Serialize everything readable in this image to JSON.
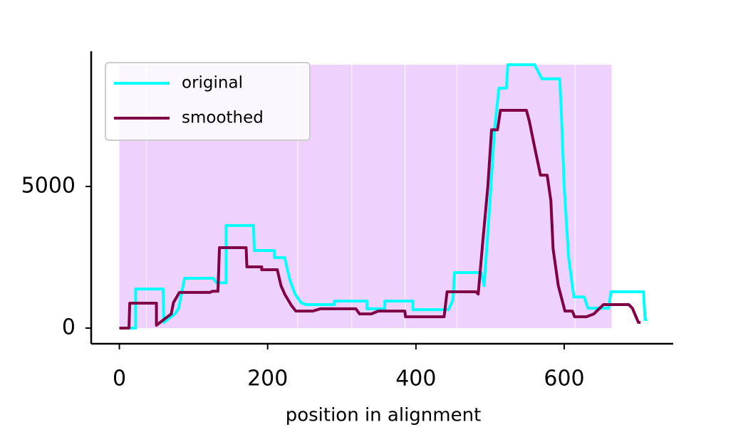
{
  "chart_data": {
    "type": "line",
    "x_label": "position in alignment",
    "xlim": [
      -38,
      747
    ],
    "ylim": [
      -553,
      9774
    ],
    "xticks": [
      0,
      200,
      400,
      600
    ],
    "yticks": [
      0,
      5000
    ],
    "legend": "upper left",
    "shaded_regions": {
      "bounds": [
        0,
        37,
        241,
        314,
        386,
        456,
        615,
        665
      ],
      "top": 9300,
      "color": "#eed2fd"
    },
    "series": [
      {
        "name": "original",
        "color": "#00ffff",
        "x": [
          0,
          14,
          22,
          22,
          59,
          60,
          65,
          75,
          80,
          88,
          127,
          131,
          144,
          144,
          181,
          182,
          209,
          209,
          223,
          230,
          237,
          245,
          252,
          290,
          290,
          334,
          334,
          358,
          358,
          396,
          396,
          444,
          450,
          452,
          488,
          492,
          500,
          506,
          512,
          522,
          524,
          560,
          570,
          594,
          596,
          600,
          606,
          613,
          627,
          632,
          660,
          663,
          707,
          709,
          712
        ],
        "values": [
          0,
          0,
          0,
          1380,
          1380,
          200,
          300,
          500,
          700,
          1760,
          1760,
          1600,
          1600,
          3620,
          3620,
          2740,
          2740,
          2490,
          2490,
          1700,
          1200,
          900,
          830,
          830,
          950,
          950,
          680,
          680,
          950,
          950,
          650,
          650,
          1000,
          1960,
          1960,
          1500,
          4500,
          7000,
          8470,
          8470,
          9300,
          9300,
          8800,
          8800,
          7700,
          5000,
          2500,
          1100,
          1100,
          700,
          700,
          1280,
          1280,
          300,
          300
        ]
      },
      {
        "name": "smoothed",
        "color": "#7f0044",
        "x": [
          0,
          13,
          14,
          50,
          50,
          60,
          70,
          73,
          81,
          122,
          126,
          133,
          135,
          171,
          172,
          192,
          192,
          213,
          218,
          223,
          232,
          238,
          261,
          271,
          319,
          324,
          340,
          349,
          385,
          386,
          438,
          442,
          481,
          484,
          490,
          497,
          502,
          510,
          514,
          549,
          553,
          560,
          568,
          577,
          582,
          585,
          592,
          601,
          611,
          614,
          630,
          640,
          653,
          687,
          692,
          700,
          703
        ],
        "values": [
          0,
          0,
          880,
          880,
          100,
          300,
          500,
          900,
          1260,
          1260,
          1300,
          1300,
          2840,
          2840,
          2160,
          2160,
          2060,
          2060,
          1500,
          1200,
          800,
          600,
          600,
          680,
          680,
          500,
          500,
          600,
          600,
          400,
          400,
          1280,
          1280,
          1200,
          3000,
          5000,
          7000,
          7000,
          7690,
          7690,
          7300,
          6400,
          5400,
          5400,
          4500,
          2800,
          1500,
          600,
          600,
          400,
          400,
          500,
          830,
          830,
          700,
          200,
          200
        ]
      }
    ]
  }
}
